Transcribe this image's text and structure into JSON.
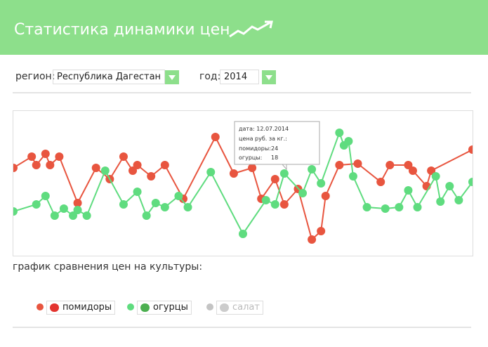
{
  "header": {
    "title": "Статистика динамики цен"
  },
  "filters": {
    "region_label": "регион:",
    "region_value": "Республика Дагестан",
    "year_label": "год:",
    "year_value": "2014"
  },
  "caption": "график сравнения цен на культуры:",
  "tooltip": {
    "date": "дата: 12.07.2014",
    "price": "цена руб. за кг.:",
    "rows": [
      {
        "label": "помидоры:",
        "value": "24"
      },
      {
        "label": "огурцы:",
        "value": "18"
      }
    ]
  },
  "chart_data": {
    "type": "line",
    "xlim": [
      0,
      100
    ],
    "ylim": [
      0,
      102
    ],
    "series": [
      {
        "name": "помидоры",
        "color": "#e8553f",
        "x": [
          0,
          4,
          5,
          7,
          8,
          10,
          14,
          18,
          21,
          24,
          26,
          27,
          30,
          33,
          37,
          44,
          48,
          52,
          54,
          57,
          59,
          62,
          65,
          67,
          68,
          71,
          75,
          80,
          82,
          86,
          87,
          90,
          91,
          100
        ],
        "values": [
          62,
          70,
          64,
          72,
          64,
          70,
          37,
          62,
          54,
          70,
          60,
          64,
          56,
          64,
          40,
          84,
          58,
          62,
          40,
          54,
          36,
          47,
          11,
          17,
          42,
          64,
          65,
          52,
          64,
          64,
          60,
          49,
          60,
          75
        ]
      },
      {
        "name": "огурцы",
        "color": "#5fdc7f",
        "x": [
          0,
          5,
          7,
          9,
          11,
          13,
          14,
          16,
          20,
          24,
          27,
          29,
          31,
          33,
          36,
          38,
          43,
          50,
          55,
          57,
          59,
          63,
          65,
          67,
          71,
          72,
          73,
          74,
          77,
          81,
          84,
          86,
          88,
          92,
          93,
          95,
          97,
          100
        ],
        "values": [
          31,
          36,
          42,
          28,
          33,
          28,
          32,
          28,
          60,
          36,
          45,
          28,
          37,
          34,
          42,
          34,
          59,
          15,
          39,
          36,
          58,
          44,
          61,
          51,
          87,
          78,
          81,
          56,
          34,
          33,
          34,
          46,
          34,
          56,
          38,
          49,
          39,
          52
        ]
      },
      {
        "name": "салат",
        "color": "#c4c4c4",
        "hidden": true,
        "x": [],
        "values": []
      }
    ]
  }
}
